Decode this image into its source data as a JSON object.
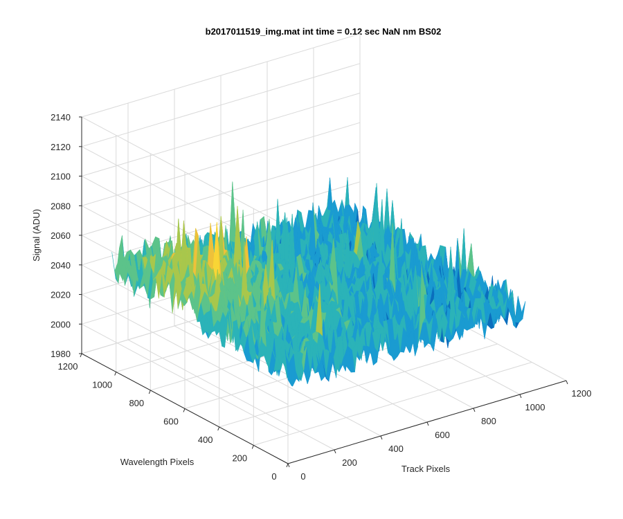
{
  "chart_data": {
    "type": "surface3d",
    "title": "b2017011519_img.mat int time = 0.12 sec  NaN nm BS02",
    "xlabel": "Track Pixels",
    "ylabel": "Wavelength Pixels",
    "zlabel": "Signal (ADU)",
    "xlim": [
      0,
      1200
    ],
    "ylim": [
      0,
      1200
    ],
    "zlim": [
      1980,
      2140
    ],
    "xticks": [
      "0",
      "200",
      "400",
      "600",
      "800",
      "1000",
      "1200"
    ],
    "yticks": [
      "0",
      "200",
      "400",
      "600",
      "800",
      "1000",
      "1200"
    ],
    "zticks": [
      "1980",
      "2000",
      "2020",
      "2040",
      "2060",
      "2080",
      "2100",
      "2120",
      "2140"
    ],
    "surface_extent": {
      "x": [
        0,
        1024
      ],
      "y": [
        0,
        1024
      ]
    },
    "signal_mean_adu": 2042,
    "signal_range_adu": [
      1995,
      2100
    ],
    "colormap": [
      "#0a6ebd",
      "#1a9bd1",
      "#2bb3b8",
      "#5cc38a",
      "#a8c74c",
      "#eec13a",
      "#f9d535"
    ]
  }
}
